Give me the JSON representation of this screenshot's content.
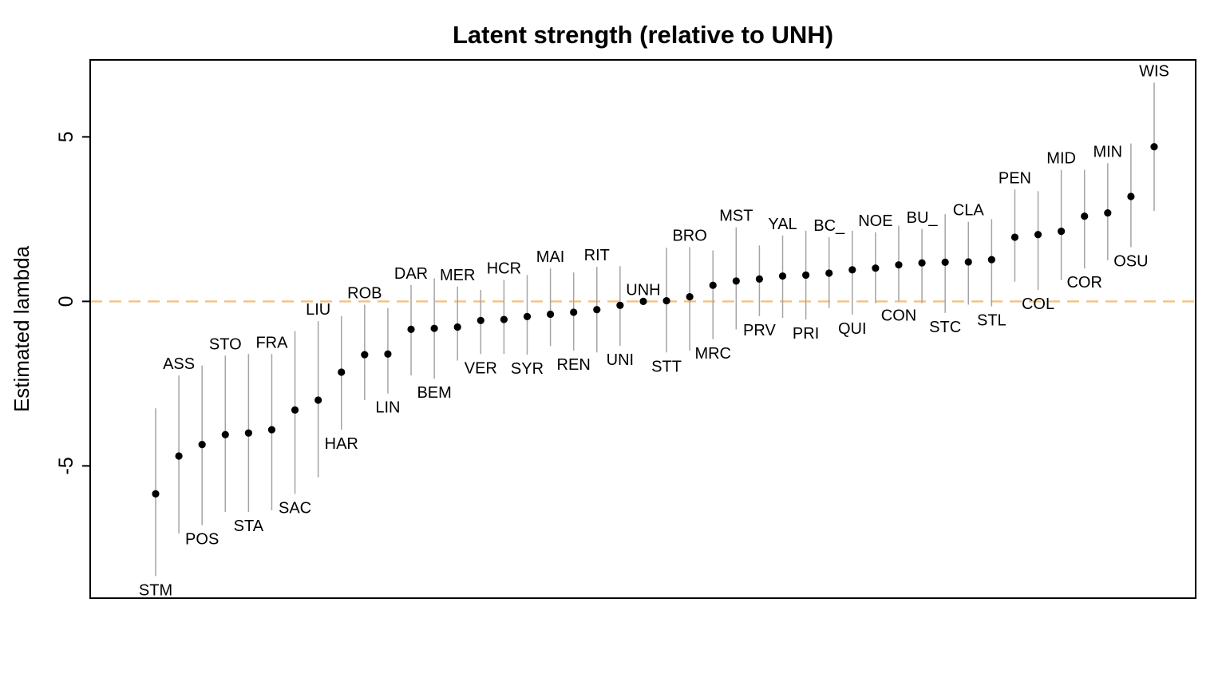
{
  "chart_data": {
    "type": "scatter",
    "subtype": "dot-and-interval (caterpillar plot)",
    "title": "Latent strength (relative to UNH)",
    "xlabel": "",
    "ylabel": "Estimated lambda",
    "ylim": [
      -9.02,
      7.34
    ],
    "yticks": [
      5,
      0,
      -5
    ],
    "grid": false,
    "legend": "none",
    "reference_line": {
      "y": 0,
      "style": "dashed",
      "color": "#F2C283"
    },
    "colors": {
      "dot": "#000000",
      "interval_line": "#A4A4A4",
      "box": "#000000",
      "text": "#000000",
      "background": "#ffffff"
    },
    "points": [
      {
        "team": "STM",
        "lambda": -5.85,
        "lo": -8.35,
        "hi": -3.25,
        "label_pos": "below"
      },
      {
        "team": "ASS",
        "lambda": -4.7,
        "lo": -7.05,
        "hi": -2.25,
        "label_pos": "above"
      },
      {
        "team": "POS",
        "lambda": -4.35,
        "lo": -6.8,
        "hi": -1.95,
        "label_pos": "below"
      },
      {
        "team": "STO",
        "lambda": -4.05,
        "lo": -6.4,
        "hi": -1.65,
        "label_pos": "above"
      },
      {
        "team": "STA",
        "lambda": -4.0,
        "lo": -6.4,
        "hi": -1.6,
        "label_pos": "below"
      },
      {
        "team": "FRA",
        "lambda": -3.9,
        "lo": -6.35,
        "hi": -1.6,
        "label_pos": "above"
      },
      {
        "team": "SAC",
        "lambda": -3.3,
        "lo": -5.85,
        "hi": -0.9,
        "label_pos": "below"
      },
      {
        "team": "LIU",
        "lambda": -3.0,
        "lo": -5.35,
        "hi": -0.6,
        "label_pos": "above"
      },
      {
        "team": "HAR",
        "lambda": -2.15,
        "lo": -3.9,
        "hi": -0.45,
        "label_pos": "below"
      },
      {
        "team": "ROB",
        "lambda": -1.62,
        "lo": -3.0,
        "hi": -0.1,
        "label_pos": "above"
      },
      {
        "team": "LIN",
        "lambda": -1.6,
        "lo": -2.8,
        "hi": -0.2,
        "label_pos": "below"
      },
      {
        "team": "DAR",
        "lambda": -0.85,
        "lo": -2.25,
        "hi": 0.5,
        "label_pos": "above"
      },
      {
        "team": "BEM",
        "lambda": -0.82,
        "lo": -2.35,
        "hi": 0.7,
        "label_pos": "below"
      },
      {
        "team": "MER",
        "lambda": -0.78,
        "lo": -1.8,
        "hi": 0.45,
        "label_pos": "above"
      },
      {
        "team": "VER",
        "lambda": -0.58,
        "lo": -1.6,
        "hi": 0.35,
        "label_pos": "below"
      },
      {
        "team": "HCR",
        "lambda": -0.55,
        "lo": -1.6,
        "hi": 0.65,
        "label_pos": "above"
      },
      {
        "team": "SYR",
        "lambda": -0.46,
        "lo": -1.62,
        "hi": 0.8,
        "label_pos": "below"
      },
      {
        "team": "MAI",
        "lambda": -0.39,
        "lo": -1.36,
        "hi": 1.0,
        "label_pos": "above"
      },
      {
        "team": "REN",
        "lambda": -0.33,
        "lo": -1.5,
        "hi": 0.88,
        "label_pos": "below"
      },
      {
        "team": "RIT",
        "lambda": -0.25,
        "lo": -1.55,
        "hi": 1.05,
        "label_pos": "above"
      },
      {
        "team": "UNI",
        "lambda": -0.12,
        "lo": -1.35,
        "hi": 1.07,
        "label_pos": "below"
      },
      {
        "team": "UNH",
        "lambda": 0.0,
        "lo": null,
        "hi": null,
        "label_pos": "above"
      },
      {
        "team": "STT",
        "lambda": 0.02,
        "lo": -1.55,
        "hi": 1.63,
        "label_pos": "below"
      },
      {
        "team": "BRO",
        "lambda": 0.14,
        "lo": -1.5,
        "hi": 1.65,
        "label_pos": "above"
      },
      {
        "team": "MRC",
        "lambda": 0.49,
        "lo": -1.15,
        "hi": 1.55,
        "label_pos": "below"
      },
      {
        "team": "MST",
        "lambda": 0.62,
        "lo": -0.85,
        "hi": 2.25,
        "label_pos": "above"
      },
      {
        "team": "PRV",
        "lambda": 0.68,
        "lo": -0.45,
        "hi": 1.7,
        "label_pos": "below"
      },
      {
        "team": "YAL",
        "lambda": 0.77,
        "lo": -0.5,
        "hi": 2.0,
        "label_pos": "above"
      },
      {
        "team": "PRI",
        "lambda": 0.8,
        "lo": -0.55,
        "hi": 2.15,
        "label_pos": "below"
      },
      {
        "team": "BC_",
        "lambda": 0.86,
        "lo": -0.2,
        "hi": 1.95,
        "label_pos": "above"
      },
      {
        "team": "QUI",
        "lambda": 0.96,
        "lo": -0.4,
        "hi": 2.15,
        "label_pos": "below"
      },
      {
        "team": "NOE",
        "lambda": 1.01,
        "lo": -0.05,
        "hi": 2.1,
        "label_pos": "above"
      },
      {
        "team": "CON",
        "lambda": 1.11,
        "lo": 0.0,
        "hi": 2.3,
        "label_pos": "below"
      },
      {
        "team": "BU_",
        "lambda": 1.17,
        "lo": -0.05,
        "hi": 2.2,
        "label_pos": "above"
      },
      {
        "team": "STC",
        "lambda": 1.19,
        "lo": -0.35,
        "hi": 2.65,
        "label_pos": "below"
      },
      {
        "team": "CLA",
        "lambda": 1.2,
        "lo": -0.1,
        "hi": 2.42,
        "label_pos": "above"
      },
      {
        "team": "STL",
        "lambda": 1.27,
        "lo": -0.15,
        "hi": 2.5,
        "label_pos": "below"
      },
      {
        "team": "PEN",
        "lambda": 1.95,
        "lo": 0.6,
        "hi": 3.4,
        "label_pos": "above"
      },
      {
        "team": "COL",
        "lambda": 2.03,
        "lo": 0.35,
        "hi": 3.35,
        "label_pos": "below"
      },
      {
        "team": "MID",
        "lambda": 2.13,
        "lo": 0.65,
        "hi": 4.0,
        "label_pos": "above"
      },
      {
        "team": "COR",
        "lambda": 2.59,
        "lo": 1.0,
        "hi": 4.0,
        "label_pos": "below"
      },
      {
        "team": "MIN",
        "lambda": 2.69,
        "lo": 1.25,
        "hi": 4.2,
        "label_pos": "above"
      },
      {
        "team": "OSU",
        "lambda": 3.19,
        "lo": 1.65,
        "hi": 4.8,
        "label_pos": "below"
      },
      {
        "team": "WIS",
        "lambda": 4.7,
        "lo": 2.75,
        "hi": 6.65,
        "label_pos": "above"
      }
    ]
  }
}
